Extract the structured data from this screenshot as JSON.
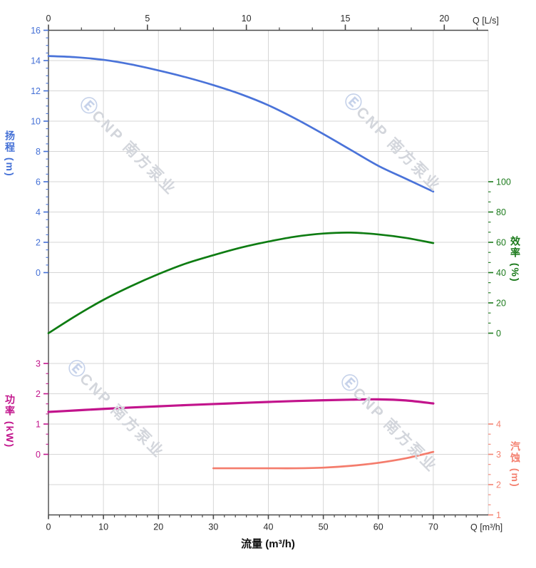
{
  "watermark": {
    "logo": "Ⓔ",
    "text": "CNP 南方泵业"
  },
  "chart_data": {
    "type": "line",
    "title": "",
    "x_axis_bottom": {
      "title": "流量 (m³/h)",
      "unit": "Q [m³/h]",
      "ticks": [
        0,
        10,
        20,
        30,
        40,
        50,
        60,
        70
      ],
      "range": [
        0,
        80
      ],
      "minor_step": 2
    },
    "x_axis_top": {
      "unit": "Q [L/s]",
      "ticks": [
        0,
        5,
        10,
        15,
        20
      ],
      "range": [
        0,
        22.22
      ],
      "minor_step": 1.6667,
      "ls_per_m3h": 3.6
    },
    "y_axes": {
      "head": {
        "title": "扬程 (m)",
        "color": "#4470d6",
        "ticks": [
          16,
          14,
          12,
          10,
          8,
          6,
          4,
          2,
          0
        ],
        "range": [
          0,
          16
        ],
        "minor_step": 0.5
      },
      "efficiency": {
        "title": "效率 (%)",
        "color": "#1b7a1b",
        "ticks": [
          100,
          80,
          60,
          40,
          20,
          0
        ],
        "range": [
          0,
          100
        ],
        "minor_step": 6.667
      },
      "power": {
        "title": "功率 (kW)",
        "color": "#c2148c",
        "ticks": [
          3,
          2,
          1,
          0
        ],
        "range": [
          0,
          3
        ],
        "minor_step": 0.3333
      },
      "npsh": {
        "title": "汽蚀 (m)",
        "color": "#f48170",
        "ticks": [
          4,
          3,
          2,
          1
        ],
        "range": [
          1,
          4
        ],
        "minor_step": 0.3333
      }
    },
    "grid": {
      "on": true,
      "x_major_step_m3h": 10,
      "y_major_rows": 16
    },
    "series": [
      {
        "name": "head",
        "axis": "head",
        "color": "#4a73d9",
        "width": 2.7,
        "x": [
          0,
          5,
          10,
          15,
          20,
          25,
          30,
          35,
          40,
          45,
          50,
          55,
          60,
          65,
          70
        ],
        "y": [
          14.3,
          14.22,
          14.05,
          13.75,
          13.35,
          12.9,
          12.38,
          11.78,
          11.05,
          10.15,
          9.15,
          8.1,
          7.05,
          6.2,
          5.35
        ]
      },
      {
        "name": "efficiency",
        "axis": "efficiency",
        "color": "#0e7c12",
        "width": 2.7,
        "x": [
          0,
          5,
          10,
          15,
          20,
          25,
          30,
          35,
          40,
          45,
          50,
          55,
          60,
          65,
          70
        ],
        "y": [
          0,
          11.5,
          22,
          31,
          39,
          46,
          51.5,
          56.5,
          60.5,
          63.8,
          65.8,
          66.4,
          65.2,
          62.9,
          59.5
        ]
      },
      {
        "name": "power",
        "axis": "power",
        "color": "#c2148c",
        "width": 3.2,
        "x": [
          0,
          5,
          10,
          15,
          20,
          25,
          30,
          35,
          40,
          45,
          50,
          55,
          60,
          65,
          70
        ],
        "y": [
          1.4,
          1.45,
          1.5,
          1.545,
          1.585,
          1.625,
          1.66,
          1.695,
          1.73,
          1.76,
          1.785,
          1.805,
          1.815,
          1.78,
          1.68
        ]
      },
      {
        "name": "npsh",
        "axis": "npsh",
        "color": "#f47c6c",
        "width": 2.7,
        "x": [
          30,
          35,
          40,
          45,
          50,
          55,
          60,
          65,
          70
        ],
        "y": [
          2.54,
          2.54,
          2.54,
          2.54,
          2.56,
          2.62,
          2.72,
          2.87,
          3.08
        ]
      }
    ]
  }
}
